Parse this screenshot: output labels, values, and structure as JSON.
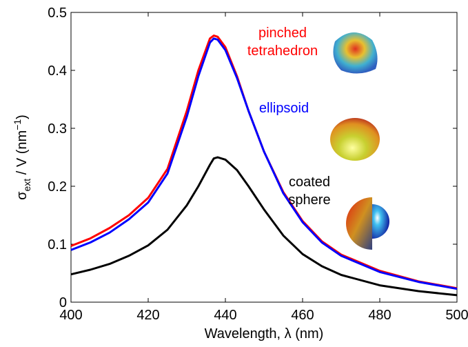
{
  "chart_data": {
    "type": "line",
    "xlabel": "Wavelength, λ (nm)",
    "ylabel": {
      "main": "σ",
      "sub": "ext",
      "mid": " / V  (nm",
      "sup": "−1",
      "end": ")"
    },
    "x": [
      400,
      405,
      410,
      415,
      420,
      425,
      430,
      433,
      436,
      437,
      438,
      440,
      443,
      446,
      450,
      455,
      460,
      465,
      470,
      480,
      490,
      500
    ],
    "series": [
      {
        "name": "pinched tetrahedron",
        "color": "#ff0000",
        "values": [
          0.097,
          0.11,
          0.128,
          0.15,
          0.18,
          0.23,
          0.33,
          0.4,
          0.455,
          0.46,
          0.458,
          0.44,
          0.39,
          0.33,
          0.26,
          0.19,
          0.14,
          0.105,
          0.082,
          0.054,
          0.036,
          0.024
        ]
      },
      {
        "name": "ellipsoid",
        "color": "#0000ff",
        "values": [
          0.09,
          0.103,
          0.12,
          0.143,
          0.172,
          0.222,
          0.32,
          0.39,
          0.448,
          0.455,
          0.453,
          0.435,
          0.387,
          0.33,
          0.26,
          0.188,
          0.138,
          0.103,
          0.08,
          0.052,
          0.035,
          0.023
        ]
      },
      {
        "name": "coated sphere",
        "color": "#000000",
        "values": [
          0.048,
          0.056,
          0.066,
          0.08,
          0.098,
          0.125,
          0.167,
          0.2,
          0.237,
          0.248,
          0.25,
          0.246,
          0.228,
          0.2,
          0.16,
          0.115,
          0.083,
          0.062,
          0.047,
          0.029,
          0.019,
          0.012
        ]
      }
    ],
    "annotations": [
      {
        "lines": [
          "pinched",
          "tetrahedron"
        ],
        "color": "#ff0000"
      },
      {
        "lines": [
          "ellipsoid"
        ],
        "color": "#0000ff"
      },
      {
        "lines": [
          "coated",
          "sphere"
        ],
        "color": "#000000"
      }
    ],
    "xlim": [
      400,
      500
    ],
    "xticks": [
      400,
      420,
      440,
      460,
      480,
      500
    ],
    "ylim": [
      0,
      0.5
    ],
    "yticks": [
      0,
      0.1,
      0.2,
      0.3,
      0.4,
      0.5
    ]
  }
}
